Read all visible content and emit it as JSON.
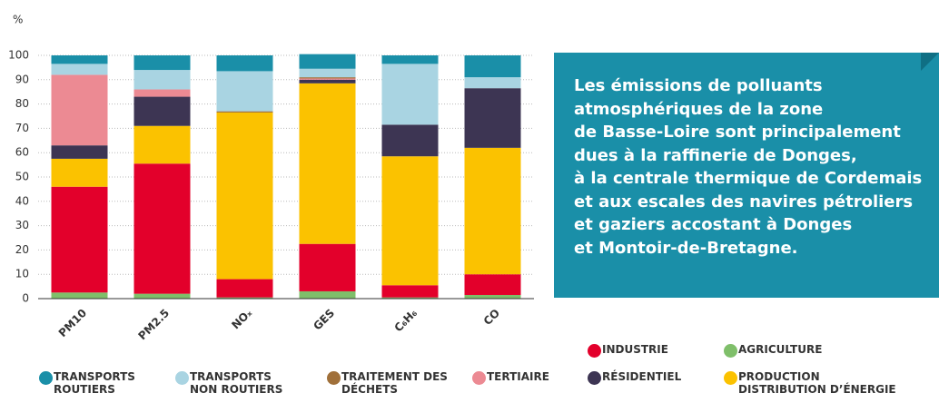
{
  "chart_data": {
    "type": "stacked_bar",
    "ylabel": "%",
    "categories": [
      "PM10",
      "PM2.5",
      "NOₓ",
      "GES",
      "C₆H₆",
      "CO"
    ],
    "ylim": [
      0,
      100
    ],
    "yticks": [
      0,
      10,
      20,
      30,
      40,
      50,
      60,
      70,
      80,
      90,
      100
    ],
    "grid": true,
    "series": [
      {
        "name": "AGRICULTURE",
        "color": "#7fbf6a",
        "values": [
          2.5,
          2,
          0.5,
          3,
          0.5,
          1.5
        ]
      },
      {
        "name": "INDUSTRIE",
        "color": "#e3002b",
        "values": [
          43.5,
          53.5,
          7.5,
          19.5,
          5,
          8.5
        ]
      },
      {
        "name": "PRODUCTION DISTRIBUTION D’ÉNERGIE",
        "color": "#fbc200",
        "values": [
          11.5,
          15.5,
          68.5,
          66,
          53,
          52
        ]
      },
      {
        "name": "RÉSIDENTIEL",
        "color": "#3d3553",
        "values": [
          5.5,
          12,
          0,
          1.5,
          13,
          24.5
        ]
      },
      {
        "name": "TERTIAIRE",
        "color": "#ec8a93",
        "values": [
          29,
          3,
          0,
          0.5,
          0,
          0
        ]
      },
      {
        "name": "TRAITEMENT DES DÉCHETS",
        "color": "#a0703a",
        "values": [
          0,
          0,
          0.5,
          0.5,
          0,
          0
        ]
      },
      {
        "name": "TRANSPORTS NON ROUTIERS",
        "color": "#a9d4e2",
        "values": [
          4.5,
          8,
          16.5,
          3.5,
          25,
          4.5
        ]
      },
      {
        "name": "TRANSPORTS ROUTIERS",
        "color": "#1a8fa8",
        "values": [
          3.5,
          6,
          6.5,
          6,
          3.5,
          9
        ]
      }
    ]
  },
  "text_box": {
    "lines": [
      "Les émissions de polluants",
      "atmosphériques de la zone",
      "de Basse-Loire sont principalement",
      "dues à la raffinerie de Donges,",
      "à la centrale thermique de Cordemais",
      "et aux escales des navires pétroliers",
      "et gaziers accostant à Donges",
      "et Montoir-de-Bretagne."
    ]
  }
}
